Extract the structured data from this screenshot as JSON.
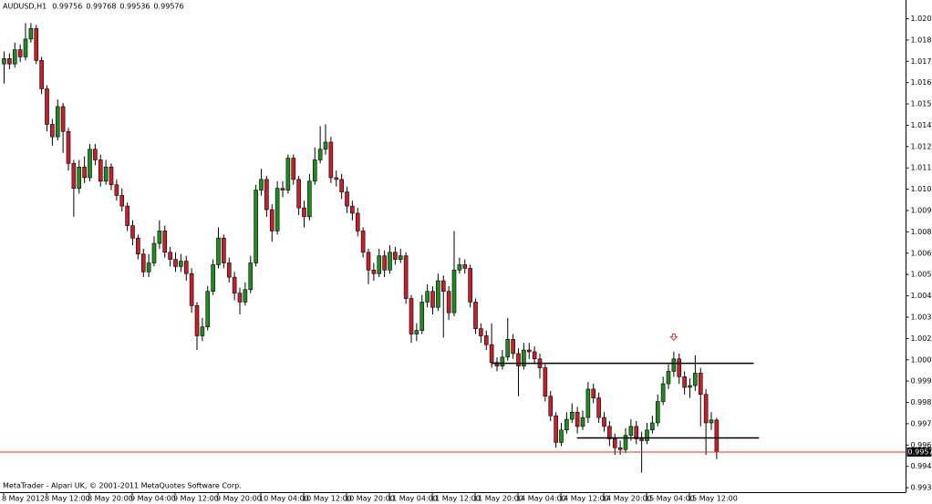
{
  "chart_data": {
    "type": "candlestick",
    "title": "AUDUSD,H1",
    "footer": "MetaTrader - Alpari UK, © 2001-2011 MetaQuotes Software Corp.",
    "categories": [
      "8 May 2012",
      null,
      null,
      null,
      null,
      null,
      null,
      null,
      "8 May 12:00",
      null,
      null,
      null,
      null,
      null,
      null,
      null,
      "8 May 20:00",
      null,
      null,
      null,
      null,
      null,
      null,
      null,
      "9 May 04:00",
      null,
      null,
      null,
      null,
      null,
      null,
      null,
      "9 May 12:00",
      null,
      null,
      null,
      null,
      null,
      null,
      null,
      "9 May 20:00",
      null,
      null,
      null,
      null,
      null,
      null,
      null,
      "10 May 04:00",
      null,
      null,
      null,
      null,
      null,
      null,
      null,
      "10 May 12:00",
      null,
      null,
      null,
      null,
      null,
      null,
      null,
      "10 May 20:00",
      null,
      null,
      null,
      null,
      null,
      null,
      null,
      "11 May 04:00",
      null,
      null,
      null,
      null,
      null,
      null,
      null,
      "11 May 12:00",
      null,
      null,
      null,
      null,
      null,
      null,
      null,
      "11 May 20:00",
      null,
      null,
      null,
      null,
      null,
      null,
      null,
      "14 May 04:00",
      null,
      null,
      null,
      null,
      null,
      null,
      null,
      "14 May 12:00",
      null,
      null,
      null,
      null,
      null,
      null,
      null,
      "14 May 20:00",
      null,
      null,
      null,
      null,
      null,
      null,
      null,
      "15 May 04:00",
      null,
      null,
      null,
      null,
      null,
      null,
      null,
      "15 May 12:00",
      null,
      null,
      null,
      null,
      null
    ],
    "open": [
      1.0176,
      1.0179,
      1.0176,
      1.0184,
      1.018,
      1.019,
      1.0196,
      1.0178,
      1.0162,
      1.0142,
      1.0135,
      1.0152,
      1.0138,
      1.012,
      1.0106,
      1.0118,
      1.0112,
      1.0128,
      1.0122,
      1.011,
      1.0118,
      1.0108,
      1.0102,
      1.0096,
      1.0085,
      1.0078,
      1.0069,
      1.0059,
      1.0064,
      1.0075,
      1.0082,
      1.007,
      1.0066,
      1.0062,
      1.0065,
      1.0058,
      1.004,
      1.0023,
      1.0028,
      1.0048,
      1.0063,
      1.0078,
      1.0064,
      1.0056,
      1.0047,
      1.0042,
      1.0049,
      1.0064,
      1.0105,
      1.0111,
      1.0094,
      1.0082,
      1.0106,
      1.0105,
      1.0123,
      1.0111,
      1.0095,
      1.009,
      1.011,
      1.0122,
      1.0128,
      1.0132,
      1.0112,
      1.0111,
      1.0104,
      1.0096,
      1.0092,
      1.0082,
      1.007,
      1.006,
      1.0058,
      1.0068,
      1.006,
      1.007,
      1.0066,
      1.0068,
      1.0044,
      1.0024,
      1.0026,
      1.0042,
      1.0048,
      1.0039,
      1.0054,
      1.0048,
      1.0036,
      1.006,
      1.0063,
      1.0061,
      1.0042,
      1.0027,
      1.0023,
      1.0018,
      1.0008,
      1.0006,
      1.0011,
      1.0021,
      1.0013,
      1.0006,
      1.0015,
      1.0014,
      1.001,
      1.0005,
      0.9989,
      0.9978,
      0.9963,
      0.997,
      0.9976,
      0.998,
      0.9972,
      0.9977,
      0.9993,
      0.9988,
      0.9977,
      0.9972,
      0.9965,
      0.996,
      0.9959,
      0.9967,
      0.9972,
      0.9965,
      0.9964,
      0.997,
      0.9974,
      0.9986,
      0.9996,
      1.0003,
      1.001,
      1.0,
      0.9994,
      0.9995,
      1.0002,
      0.999,
      0.9974,
      0.99756
    ],
    "high": [
      1.0183,
      1.0182,
      1.0188,
      1.0187,
      1.0199,
      1.0199,
      1.0198,
      1.018,
      1.0164,
      1.0145,
      1.0156,
      1.0154,
      1.014,
      1.0122,
      1.0122,
      1.0124,
      1.0131,
      1.0131,
      1.0125,
      1.0122,
      1.012,
      1.0111,
      1.0106,
      1.0098,
      1.0088,
      1.008,
      1.0072,
      1.0069,
      1.0079,
      1.0088,
      1.0085,
      1.0073,
      1.007,
      1.0069,
      1.0068,
      1.0061,
      1.0042,
      1.0033,
      1.0051,
      1.0066,
      1.0084,
      1.008,
      1.0067,
      1.0059,
      1.005,
      1.0053,
      1.0068,
      1.0108,
      1.0117,
      1.0113,
      1.0097,
      1.011,
      1.011,
      1.0125,
      1.0125,
      1.0113,
      1.0099,
      1.0114,
      1.0129,
      1.0141,
      1.0142,
      1.0135,
      1.0116,
      1.0114,
      1.0107,
      1.0099,
      1.0095,
      1.0084,
      1.0072,
      1.0064,
      1.0072,
      1.0071,
      1.0074,
      1.0073,
      1.0072,
      1.007,
      1.0046,
      1.003,
      1.0046,
      1.0052,
      1.0051,
      1.0058,
      1.0057,
      1.0051,
      1.0082,
      1.0067,
      1.0066,
      1.0063,
      1.0044,
      1.003,
      1.0026,
      1.003,
      1.0011,
      1.0015,
      1.0033,
      1.0024,
      1.0016,
      1.0019,
      1.0019,
      1.0017,
      1.0013,
      1.0007,
      0.9992,
      0.998,
      0.9974,
      0.998,
      0.9985,
      0.9983,
      0.9981,
      0.9997,
      0.9996,
      0.9991,
      0.998,
      0.9975,
      0.9968,
      0.9964,
      0.9971,
      0.9976,
      0.9975,
      0.9969,
      0.9974,
      0.9978,
      0.999,
      1.0,
      1.0007,
      1.0014,
      1.0013,
      1.0003,
      0.9999,
      1.0012,
      1.0005,
      0.9993,
      0.998,
      0.99768
    ],
    "low": [
      1.0165,
      1.0173,
      1.0174,
      1.0177,
      1.0178,
      1.0188,
      1.0176,
      1.0159,
      1.0138,
      1.013,
      1.0133,
      1.0126,
      1.0116,
      1.009,
      1.0103,
      1.0109,
      1.011,
      1.0119,
      1.0107,
      1.0108,
      1.0105,
      1.0099,
      1.0093,
      1.0082,
      1.0074,
      1.0066,
      1.0056,
      1.0056,
      1.0062,
      1.0072,
      1.0067,
      1.0062,
      1.0059,
      1.0059,
      1.0054,
      1.0036,
      1.0015,
      1.002,
      1.0026,
      1.0046,
      1.0061,
      1.0061,
      1.0053,
      1.0043,
      1.0035,
      1.004,
      1.0047,
      1.0062,
      1.0102,
      1.009,
      1.0076,
      1.008,
      1.0101,
      1.0103,
      1.0108,
      1.0091,
      1.0084,
      1.0088,
      1.0108,
      1.012,
      1.0125,
      1.0109,
      1.0107,
      1.01,
      1.0092,
      1.0088,
      1.0079,
      1.0067,
      1.0052,
      1.0054,
      1.0056,
      1.0056,
      1.0058,
      1.0063,
      1.0064,
      1.0041,
      1.0019,
      1.002,
      1.0024,
      1.0039,
      1.0035,
      1.0037,
      1.0022,
      1.0032,
      1.0034,
      1.0058,
      1.0058,
      1.0039,
      1.0024,
      1.0019,
      1.0015,
      1.0005,
      1.0003,
      1.0004,
      1.0009,
      1.001,
      0.9989,
      1.0004,
      1.001,
      1.0007,
      0.9999,
      0.9986,
      0.9975,
      0.996,
      0.9961,
      0.9968,
      0.9974,
      0.9968,
      0.997,
      0.9974,
      0.9985,
      0.9974,
      0.9969,
      0.9961,
      0.9956,
      0.9956,
      0.9957,
      0.9964,
      0.9962,
      0.9946,
      0.9962,
      0.9968,
      0.9972,
      0.9984,
      0.9993,
      1.0,
      0.9996,
      0.999,
      0.9988,
      0.9992,
      0.9972,
      0.9956,
      0.997,
      0.99536
    ],
    "close": [
      1.0179,
      1.0176,
      1.0184,
      1.018,
      1.019,
      1.0196,
      1.0178,
      1.0162,
      1.0142,
      1.0135,
      1.0152,
      1.0138,
      1.012,
      1.0106,
      1.0118,
      1.0112,
      1.0128,
      1.0122,
      1.011,
      1.0118,
      1.0108,
      1.0102,
      1.0096,
      1.0085,
      1.0078,
      1.0069,
      1.0059,
      1.0064,
      1.0075,
      1.0082,
      1.007,
      1.0066,
      1.0062,
      1.0065,
      1.0058,
      1.004,
      1.0023,
      1.0028,
      1.0048,
      1.0063,
      1.0078,
      1.0064,
      1.0056,
      1.0047,
      1.0042,
      1.0049,
      1.0064,
      1.0105,
      1.0111,
      1.0094,
      1.0082,
      1.0106,
      1.0105,
      1.0123,
      1.0111,
      1.0095,
      1.009,
      1.011,
      1.0122,
      1.0128,
      1.0132,
      1.0112,
      1.0111,
      1.0104,
      1.0096,
      1.0092,
      1.0082,
      1.007,
      1.006,
      1.0058,
      1.0068,
      1.006,
      1.007,
      1.0066,
      1.0068,
      1.0044,
      1.0024,
      1.0026,
      1.0042,
      1.0048,
      1.0039,
      1.0054,
      1.0048,
      1.0036,
      1.006,
      1.0063,
      1.0061,
      1.0042,
      1.0027,
      1.0023,
      1.0018,
      1.0008,
      1.0006,
      1.0011,
      1.0021,
      1.0013,
      1.0006,
      1.0015,
      1.0014,
      1.001,
      1.0005,
      0.9989,
      0.9978,
      0.9963,
      0.997,
      0.9976,
      0.998,
      0.9972,
      0.9977,
      0.9993,
      0.9988,
      0.9977,
      0.9972,
      0.9965,
      0.996,
      0.9959,
      0.9967,
      0.9972,
      0.9965,
      0.9964,
      0.997,
      0.9974,
      0.9986,
      0.9996,
      1.0003,
      1.001,
      1.0,
      0.9994,
      0.9995,
      1.0002,
      0.999,
      0.9974,
      0.99756,
      0.99576
    ],
    "up_color": "#1e8c1e",
    "down_color": "#c8202a",
    "ylim": [
      0.9935,
      1.0212
    ],
    "yticks": [
      1.02015,
      1.01895,
      1.01775,
      1.01655,
      1.01535,
      1.01415,
      1.01295,
      1.01175,
      1.01055,
      1.00935,
      1.00815,
      1.00695,
      1.00575,
      1.00455,
      1.00335,
      1.00215,
      1.00095,
      0.99975,
      0.99855,
      0.99735,
      0.99615,
      0.99495,
      0.99375
    ],
    "levels": [
      {
        "value": 1.00075,
        "start": 91,
        "end": 140
      },
      {
        "value": 0.99655,
        "start": 107,
        "end": 141
      }
    ],
    "level_color": "#000000",
    "price_line_color": "#e03030",
    "arrow": {
      "index": 125,
      "value": 1.0022,
      "color": "#e03030"
    }
  }
}
